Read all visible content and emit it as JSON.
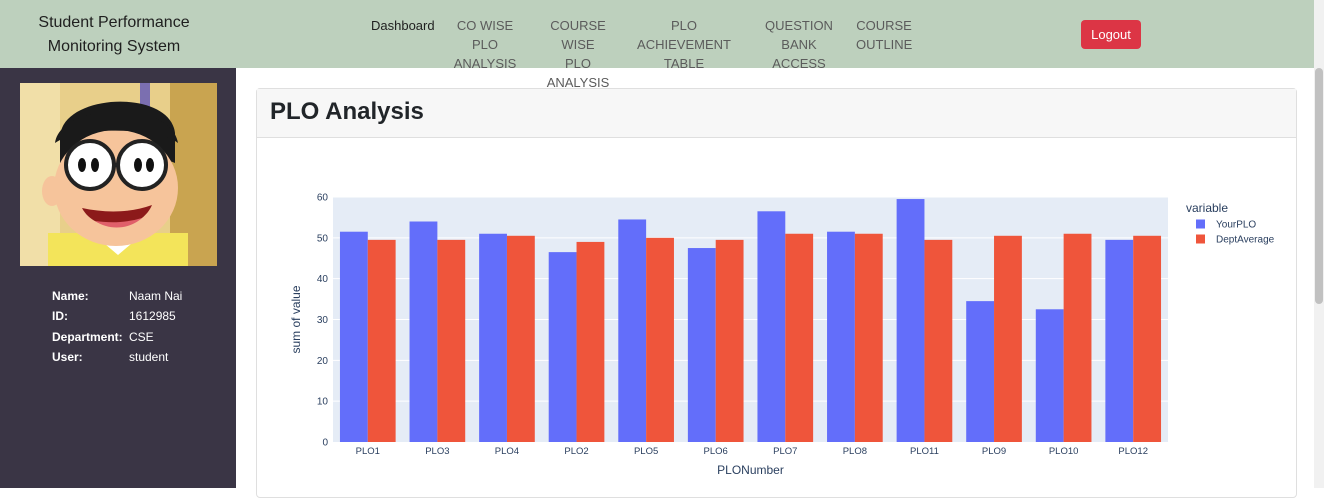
{
  "navbar": {
    "brand_line1": "Student Performance",
    "brand_line2": "Monitoring System",
    "items": [
      {
        "line1": "Dashboard",
        "line2": ""
      },
      {
        "line1": "CO WISE",
        "line2": "PLO ANALYSIS"
      },
      {
        "line1": "COURSE WISE",
        "line2": "PLO ANALYSIS"
      },
      {
        "line1": "PLO ACHIEVEMENT",
        "line2": "TABLE"
      },
      {
        "line1": "QUESTION BANK",
        "line2": "ACCESS"
      },
      {
        "line1": "COURSE",
        "line2": "OUTLINE"
      }
    ],
    "logout_label": "Logout",
    "colors": {
      "navbar_bg": "#bdd0bd",
      "logout_bg": "#dc3545"
    }
  },
  "sidebar": {
    "avatar_icon": "cartoon-avatar-icon",
    "fields": [
      {
        "label": "Name:",
        "value": "Naam Nai"
      },
      {
        "label": "ID:",
        "value": "1612985"
      },
      {
        "label": "Department:",
        "value": "CSE"
      },
      {
        "label": "User:",
        "value": "student"
      }
    ],
    "colors": {
      "bg": "#3a3545"
    }
  },
  "main": {
    "card_title": "PLO Analysis"
  },
  "chart_data": {
    "type": "bar",
    "categories": [
      "PLO1",
      "PLO3",
      "PLO4",
      "PLO2",
      "PLO5",
      "PLO6",
      "PLO7",
      "PLO8",
      "PLO11",
      "PLO9",
      "PLO10",
      "PLO12"
    ],
    "series": [
      {
        "name": "YourPLO",
        "color": "#636efa",
        "values": [
          51.5,
          54,
          51,
          46.5,
          54.5,
          47.5,
          56.5,
          51.5,
          59.5,
          34.5,
          32.5,
          49.5
        ]
      },
      {
        "name": "DeptAverage",
        "color": "#ef553b",
        "values": [
          49.5,
          49.5,
          50.5,
          49,
          50,
          49.5,
          51,
          51,
          49.5,
          50.5,
          51,
          50.5
        ]
      }
    ],
    "xlabel": "PLONumber",
    "ylabel": "sum of value",
    "ylim": [
      0,
      60
    ],
    "yticks": [
      0,
      10,
      20,
      30,
      40,
      50,
      60
    ],
    "legend_title": "variable",
    "legend_position": "top-right",
    "grid": true,
    "plot_bg": "#e5ecf6"
  }
}
